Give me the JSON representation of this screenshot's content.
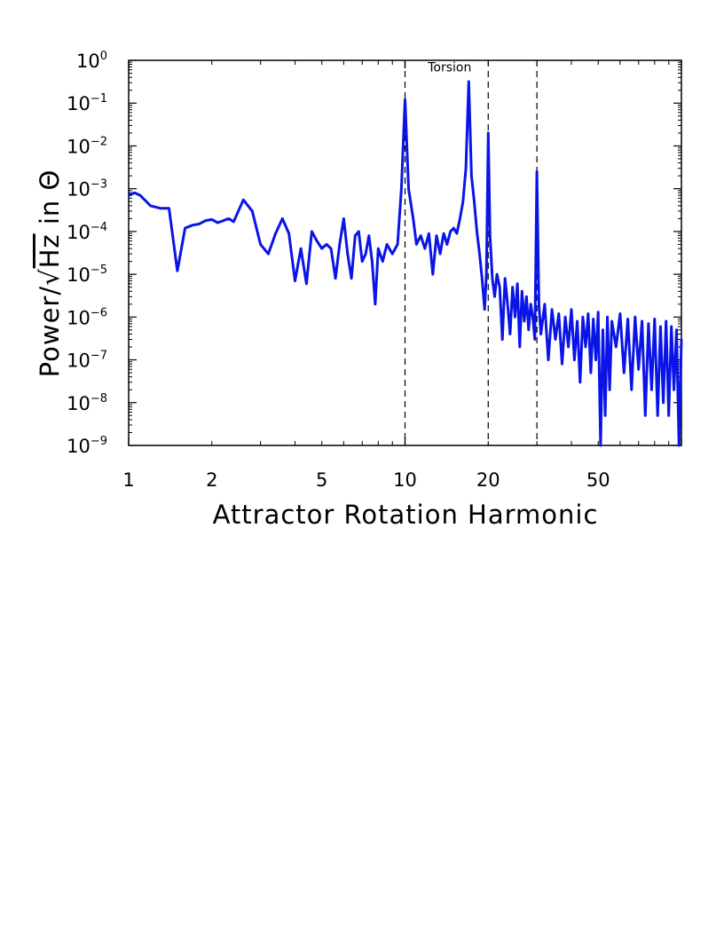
{
  "chart_data": {
    "type": "line",
    "title": "",
    "xlabel": "Attractor Rotation Harmonic",
    "ylabel_prefix": "Power/",
    "ylabel_sqrt": "√",
    "ylabel_hz": "Hz",
    "ylabel_suffix": " in Θ",
    "xscale": "log",
    "yscale": "log",
    "xlim": [
      1,
      100
    ],
    "ylim": [
      1e-09,
      1
    ],
    "grid": false,
    "x_ticks": [
      {
        "value": 1,
        "label": "1"
      },
      {
        "value": 2,
        "label": "2"
      },
      {
        "value": 5,
        "label": "5"
      },
      {
        "value": 10,
        "label": "10"
      },
      {
        "value": 20,
        "label": "20"
      },
      {
        "value": 50,
        "label": "50"
      }
    ],
    "y_ticks": [
      {
        "exp": 0,
        "base": "10",
        "sup": "0"
      },
      {
        "exp": -1,
        "base": "10",
        "sup": "−1"
      },
      {
        "exp": -2,
        "base": "10",
        "sup": "−2"
      },
      {
        "exp": -3,
        "base": "10",
        "sup": "−3"
      },
      {
        "exp": -4,
        "base": "10",
        "sup": "−4"
      },
      {
        "exp": -5,
        "base": "10",
        "sup": "−5"
      },
      {
        "exp": -6,
        "base": "10",
        "sup": "−6"
      },
      {
        "exp": -7,
        "base": "10",
        "sup": "−7"
      },
      {
        "exp": -8,
        "base": "10",
        "sup": "−8"
      },
      {
        "exp": -9,
        "base": "10",
        "sup": "−9"
      }
    ],
    "vlines": [
      10,
      20,
      30
    ],
    "annotations": [
      {
        "text": "Torsion",
        "x": 14.5,
        "y": 0.55
      }
    ],
    "series": [
      {
        "color": "#0a14e6",
        "points": [
          [
            1.0,
            0.0007
          ],
          [
            1.05,
            0.0008
          ],
          [
            1.1,
            0.0007
          ],
          [
            1.2,
            0.0004
          ],
          [
            1.3,
            0.00035
          ],
          [
            1.4,
            0.00035
          ],
          [
            1.5,
            1.2e-05
          ],
          [
            1.6,
            0.00012
          ],
          [
            1.7,
            0.00014
          ],
          [
            1.8,
            0.00015
          ],
          [
            1.9,
            0.00018
          ],
          [
            2.0,
            0.00019
          ],
          [
            2.1,
            0.00016
          ],
          [
            2.2,
            0.00018
          ],
          [
            2.3,
            0.0002
          ],
          [
            2.4,
            0.00017
          ],
          [
            2.6,
            0.00055
          ],
          [
            2.8,
            0.0003
          ],
          [
            3.0,
            5e-05
          ],
          [
            3.2,
            3e-05
          ],
          [
            3.4,
            9e-05
          ],
          [
            3.6,
            0.0002
          ],
          [
            3.8,
            9e-05
          ],
          [
            4.0,
            7e-06
          ],
          [
            4.2,
            4e-05
          ],
          [
            4.4,
            6e-06
          ],
          [
            4.6,
            0.0001
          ],
          [
            4.8,
            6e-05
          ],
          [
            5.0,
            4e-05
          ],
          [
            5.2,
            5e-05
          ],
          [
            5.4,
            4e-05
          ],
          [
            5.6,
            8e-06
          ],
          [
            5.8,
            5e-05
          ],
          [
            6.0,
            0.0002
          ],
          [
            6.2,
            3e-05
          ],
          [
            6.4,
            8e-06
          ],
          [
            6.6,
            8e-05
          ],
          [
            6.8,
            0.0001
          ],
          [
            7.0,
            2e-05
          ],
          [
            7.2,
            3e-05
          ],
          [
            7.4,
            8e-05
          ],
          [
            7.6,
            2e-05
          ],
          [
            7.8,
            2e-06
          ],
          [
            8.0,
            4e-05
          ],
          [
            8.3,
            2e-05
          ],
          [
            8.6,
            5e-05
          ],
          [
            9.0,
            3e-05
          ],
          [
            9.4,
            5e-05
          ],
          [
            9.7,
            0.001
          ],
          [
            10.0,
            0.12
          ],
          [
            10.3,
            0.001
          ],
          [
            10.7,
            0.0002
          ],
          [
            11.0,
            5e-05
          ],
          [
            11.4,
            8e-05
          ],
          [
            11.8,
            4e-05
          ],
          [
            12.2,
            9e-05
          ],
          [
            12.6,
            1e-05
          ],
          [
            13.0,
            8e-05
          ],
          [
            13.4,
            3e-05
          ],
          [
            13.8,
            9e-05
          ],
          [
            14.2,
            5e-05
          ],
          [
            14.6,
            0.0001
          ],
          [
            15.0,
            0.00012
          ],
          [
            15.4,
            9e-05
          ],
          [
            15.8,
            0.0002
          ],
          [
            16.2,
            0.0005
          ],
          [
            16.6,
            0.003
          ],
          [
            17.0,
            0.32
          ],
          [
            17.4,
            0.002
          ],
          [
            17.8,
            0.0005
          ],
          [
            18.2,
            0.0001
          ],
          [
            18.6,
            3e-05
          ],
          [
            19.0,
            8e-06
          ],
          [
            19.4,
            1.5e-06
          ],
          [
            19.7,
            1e-05
          ],
          [
            20.0,
            0.02
          ],
          [
            20.3,
            8e-05
          ],
          [
            20.7,
            8e-06
          ],
          [
            21.1,
            3e-06
          ],
          [
            21.5,
            1e-05
          ],
          [
            22.0,
            5e-06
          ],
          [
            22.5,
            3e-07
          ],
          [
            23.0,
            8e-06
          ],
          [
            23.5,
            2e-06
          ],
          [
            24.0,
            4e-07
          ],
          [
            24.5,
            5e-06
          ],
          [
            25.0,
            1e-06
          ],
          [
            25.5,
            6e-06
          ],
          [
            26.0,
            2e-07
          ],
          [
            26.5,
            4e-06
          ],
          [
            27.0,
            8e-07
          ],
          [
            27.5,
            3e-06
          ],
          [
            28.0,
            5e-07
          ],
          [
            28.5,
            2e-06
          ],
          [
            29.0,
            1e-06
          ],
          [
            29.5,
            3e-07
          ],
          [
            30.0,
            0.0025
          ],
          [
            30.5,
            2e-06
          ],
          [
            31.0,
            4e-07
          ],
          [
            32.0,
            2e-06
          ],
          [
            33.0,
            1e-07
          ],
          [
            34.0,
            1.5e-06
          ],
          [
            35.0,
            3e-07
          ],
          [
            36.0,
            1.2e-06
          ],
          [
            37.0,
            8e-08
          ],
          [
            38.0,
            1e-06
          ],
          [
            39.0,
            2e-07
          ],
          [
            40.0,
            1.5e-06
          ],
          [
            41.0,
            1e-07
          ],
          [
            42.0,
            8e-07
          ],
          [
            43.0,
            3e-08
          ],
          [
            44.0,
            1e-06
          ],
          [
            45.0,
            2e-07
          ],
          [
            46.0,
            1.2e-06
          ],
          [
            47.0,
            5e-08
          ],
          [
            48.0,
            9e-07
          ],
          [
            49.0,
            1e-07
          ],
          [
            50.0,
            1.3e-06
          ],
          [
            51.0,
            1e-09
          ],
          [
            52.0,
            5e-07
          ],
          [
            53.0,
            5e-09
          ],
          [
            54.0,
            1e-06
          ],
          [
            55.0,
            2e-08
          ],
          [
            56.0,
            8e-07
          ],
          [
            58.0,
            2e-07
          ],
          [
            60.0,
            1.2e-06
          ],
          [
            62.0,
            5e-08
          ],
          [
            64.0,
            9e-07
          ],
          [
            66.0,
            2e-08
          ],
          [
            68.0,
            1e-06
          ],
          [
            70.0,
            6e-08
          ],
          [
            72.0,
            8e-07
          ],
          [
            74.0,
            5e-09
          ],
          [
            76.0,
            7e-07
          ],
          [
            78.0,
            2e-08
          ],
          [
            80.0,
            9e-07
          ],
          [
            82.0,
            5e-09
          ],
          [
            84.0,
            6e-07
          ],
          [
            86.0,
            1e-08
          ],
          [
            88.0,
            8e-07
          ],
          [
            90.0,
            5e-09
          ],
          [
            92.0,
            6e-07
          ],
          [
            94.0,
            2e-08
          ],
          [
            96.0,
            5e-07
          ],
          [
            98.0,
            1e-09
          ],
          [
            100.0,
            3e-07
          ]
        ]
      }
    ]
  }
}
